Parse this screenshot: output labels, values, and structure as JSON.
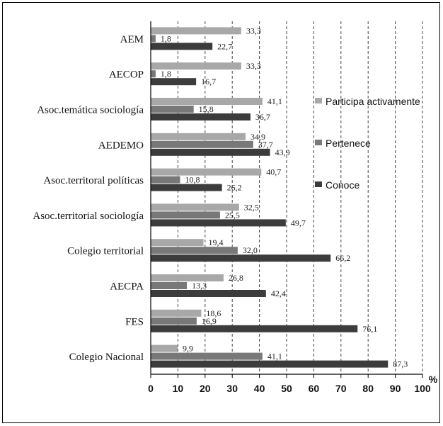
{
  "chart_data": {
    "type": "bar",
    "orientation": "horizontal",
    "categories": [
      "AEM",
      "AECOP",
      "Asoc.temática sociología",
      "AEDEMO",
      "Asoc.territoral políticas",
      "Asoc.territorial sociología",
      "Colegio territorial",
      "AECPA",
      "FES",
      "Colegio Nacional"
    ],
    "series": [
      {
        "name": "Participa activamente",
        "color": "#a8a8a8",
        "values": [
          33.3,
          33.3,
          41.1,
          34.9,
          40.7,
          32.5,
          19.4,
          26.8,
          18.6,
          9.9
        ]
      },
      {
        "name": "Pertenece",
        "color": "#787878",
        "values": [
          1.8,
          1.8,
          15.8,
          37.7,
          10.8,
          25.5,
          32.0,
          13.3,
          16.9,
          41.1
        ]
      },
      {
        "name": "Conoce",
        "color": "#3c3c3c",
        "values": [
          22.7,
          16.7,
          36.7,
          43.9,
          26.2,
          49.7,
          66.2,
          42.4,
          76.1,
          87.3
        ]
      }
    ],
    "value_labels": [
      [
        "33,3",
        "1,8",
        "22,7"
      ],
      [
        "33,3",
        "1,8",
        "16,7"
      ],
      [
        "41,1",
        "15,8",
        "36,7"
      ],
      [
        "34,9",
        "37,7",
        "43,9"
      ],
      [
        "40,7",
        "10,8",
        "26,2"
      ],
      [
        "32,5",
        "25,5",
        "49,7"
      ],
      [
        "19,4",
        "32,0",
        "66,2"
      ],
      [
        "26,8",
        "13,3",
        "42,4"
      ],
      [
        "18,6",
        "16,9",
        "76,1"
      ],
      [
        "9,9",
        "41,1",
        "87,3"
      ]
    ],
    "xlim": [
      0,
      100
    ],
    "x_ticks": [
      "0",
      "10",
      "20",
      "30",
      "40",
      "50",
      "60",
      "70",
      "80",
      "90",
      "100"
    ],
    "x_unit": "%",
    "grid": "vertical-dashed",
    "legend_position": "right"
  }
}
